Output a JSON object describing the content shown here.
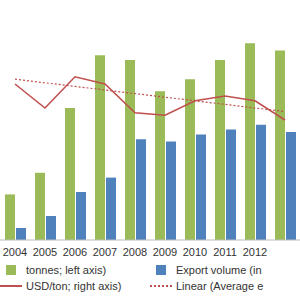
{
  "chart_data": {
    "type": "bar",
    "categories": [
      "2004",
      "2005",
      "2006",
      "2007",
      "2008",
      "2009",
      "2010",
      "2011",
      "2012",
      null
    ],
    "ylim": [
      0,
      100
    ],
    "y2lim": [
      0,
      100
    ],
    "tick_labels": "x",
    "legend": "bottom",
    "series": [
      {
        "name": "tonnes; left axis)",
        "type": "bar",
        "color": "#9bbb59",
        "values": [
          19,
          28,
          55,
          77,
          75,
          62,
          67,
          75,
          82,
          79
        ]
      },
      {
        "name": "Export volume (in",
        "type": "bar",
        "color": "#4f81bd",
        "values": [
          5,
          10,
          20,
          26,
          42,
          41,
          44,
          46,
          48,
          45
        ]
      },
      {
        "name": "USD/ton; right axis)",
        "type": "line",
        "axis": "y2",
        "color": "#c0504d",
        "line_style": "solid",
        "values": [
          65,
          55,
          68,
          65,
          53,
          52,
          58,
          60,
          58,
          50
        ]
      },
      {
        "name": "Linear (Average e",
        "type": "line",
        "axis": "y2",
        "color": "#c0504d",
        "line_style": "dotted",
        "values": [
          67,
          65.5,
          64,
          62.5,
          61,
          59.5,
          58,
          56.5,
          55,
          53.5
        ]
      }
    ]
  }
}
